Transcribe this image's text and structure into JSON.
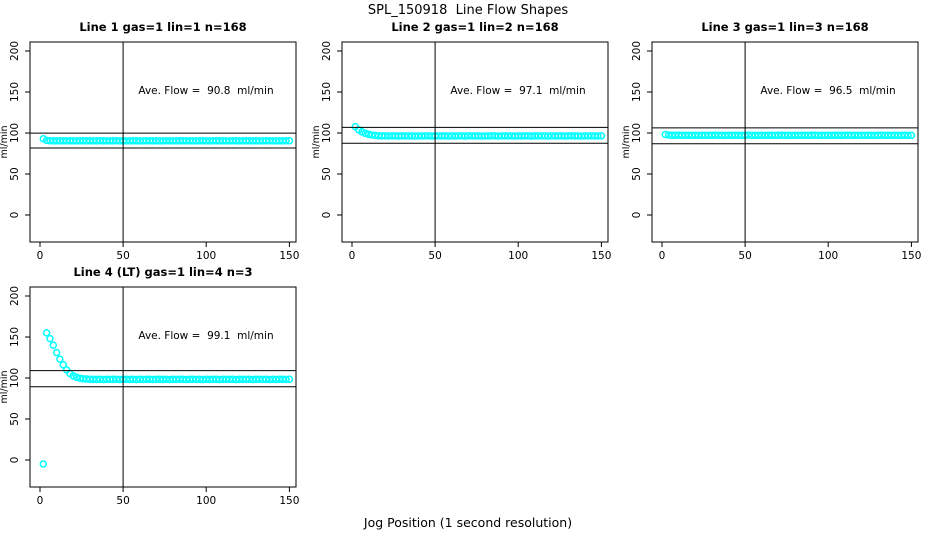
{
  "chart_data": {
    "type": "scatter",
    "title": "SPL_150918  Line Flow Shapes",
    "xlabel": "Jog Position (1 second resolution)",
    "ylabel": "ml/min",
    "xlim": [
      -6,
      154
    ],
    "ylim": [
      -33,
      211
    ],
    "xticks": [
      0,
      50,
      100,
      150
    ],
    "yticks": [
      0,
      50,
      100,
      150,
      200
    ],
    "grid": false,
    "legend": "none",
    "point_color": "#00FFFF",
    "axis_color": "#000000",
    "vline_x": 50,
    "panels": [
      {
        "title": "Line 1 gas=1 lin=1 n=168",
        "avg_flow": 90.8,
        "annotation": "Ave. Flow =  90.8  ml/min",
        "ref_lines": [
          99.9,
          81.7
        ],
        "x0": 2,
        "dx": 2,
        "y": [
          93,
          91,
          90.6,
          90.4,
          90.5,
          90.3,
          90.6,
          90.4,
          90.5,
          90.4,
          90.3,
          90.5,
          90.6,
          90.4,
          90.5,
          90.3,
          90.4,
          90.6,
          90.5,
          90.4,
          90.3,
          90.5,
          90.6,
          90.4,
          90.5,
          90.3,
          90.4,
          90.6,
          90.5,
          90.4,
          90.3,
          90.5,
          90.6,
          90.4,
          90.5,
          90.3,
          90.4,
          90.6,
          90.5,
          90.4,
          90.3,
          90.5,
          90.6,
          90.4,
          90.5,
          90.3,
          90.4,
          90.6,
          90.5,
          90.4,
          90.3,
          90.5,
          90.6,
          90.4,
          90.5,
          90.3,
          90.4,
          90.6,
          90.5,
          90.4,
          90.3,
          90.5,
          90.6,
          90.4,
          90.5,
          90.3,
          90.4,
          90.6,
          90.5,
          90.4,
          90.3,
          90.5,
          90.4,
          90.6,
          90.5
        ]
      },
      {
        "title": "Line 2 gas=1 lin=2 n=168",
        "avg_flow": 97.1,
        "annotation": "Ave. Flow =  97.1  ml/min",
        "ref_lines": [
          106.8,
          87.4
        ],
        "x0": 2,
        "dx": 2,
        "y": [
          107.8,
          103.9,
          101.4,
          99.6,
          98.4,
          97.6,
          97.0,
          96.7,
          96.5,
          96.4,
          96.3,
          96.5,
          96.4,
          96.2,
          96.4,
          96.5,
          96.3,
          96.4,
          96.2,
          96.4,
          96.3,
          96.5,
          96.4,
          96.2,
          96.4,
          96.5,
          96.3,
          96.4,
          96.2,
          96.4,
          96.3,
          96.5,
          96.4,
          96.2,
          96.4,
          96.5,
          96.3,
          96.4,
          96.2,
          96.4,
          96.3,
          96.5,
          96.4,
          96.2,
          96.4,
          96.5,
          96.3,
          96.4,
          96.2,
          96.4,
          96.3,
          96.5,
          96.4,
          96.2,
          96.4,
          96.5,
          96.3,
          96.4,
          96.2,
          96.4,
          96.3,
          96.5,
          96.4,
          96.2,
          96.4,
          96.5,
          96.3,
          96.4,
          96.2,
          96.4,
          96.3,
          96.5,
          96.4,
          96.3,
          96.4
        ]
      },
      {
        "title": "Line 3 gas=1 lin=3 n=168",
        "avg_flow": 96.5,
        "annotation": "Ave. Flow =  96.5  ml/min",
        "ref_lines": [
          106.2,
          86.9
        ],
        "x0": 2,
        "dx": 2,
        "y": [
          98.2,
          97.6,
          97.3,
          97.2,
          97.4,
          97.1,
          97.3,
          97.2,
          97.0,
          97.3,
          97.1,
          97.3,
          97.2,
          97.0,
          97.2,
          97.4,
          97.1,
          97.2,
          97.0,
          97.3,
          97.1,
          97.3,
          97.2,
          97.0,
          97.2,
          97.4,
          97.1,
          97.2,
          97.0,
          97.3,
          97.1,
          97.3,
          97.2,
          97.0,
          97.2,
          97.4,
          97.1,
          97.2,
          97.0,
          97.3,
          97.1,
          97.3,
          97.2,
          97.0,
          97.2,
          97.4,
          97.1,
          97.2,
          97.0,
          97.3,
          97.1,
          97.3,
          97.2,
          97.0,
          97.2,
          97.4,
          97.1,
          97.2,
          97.0,
          97.3,
          97.1,
          97.3,
          97.2,
          97.0,
          97.2,
          97.4,
          97.1,
          97.2,
          97.0,
          97.3,
          97.2,
          97.0,
          97.3,
          97.1,
          97.2
        ]
      },
      {
        "title": "Line 4 (LT) gas=1 lin=4 n=3",
        "avg_flow": 99.1,
        "annotation": "Ave. Flow =  99.1  ml/min",
        "ref_lines": [
          109.0,
          89.2
        ],
        "x0": 2,
        "dx": 2,
        "y": [
          -5,
          155,
          148,
          140,
          131,
          123,
          116,
          110,
          105.5,
          102.5,
          100.8,
          99.7,
          99.0,
          98.7,
          98.5,
          98.4,
          98.3,
          98.4,
          98.2,
          98.4,
          98.3,
          98.5,
          98.4,
          98.2,
          98.4,
          98.5,
          98.3,
          98.4,
          98.2,
          98.4,
          98.3,
          98.5,
          98.4,
          98.2,
          98.4,
          98.5,
          98.3,
          98.4,
          98.2,
          98.4,
          98.3,
          98.5,
          98.4,
          98.2,
          98.4,
          98.5,
          98.3,
          98.4,
          98.2,
          98.4,
          98.3,
          98.5,
          98.4,
          98.2,
          98.4,
          98.5,
          98.3,
          98.4,
          98.2,
          98.4,
          98.3,
          98.5,
          98.4,
          98.2,
          98.4,
          98.5,
          98.3,
          98.4,
          98.2,
          98.4,
          98.3,
          98.5,
          98.4,
          98.3,
          98.4
        ]
      }
    ]
  }
}
